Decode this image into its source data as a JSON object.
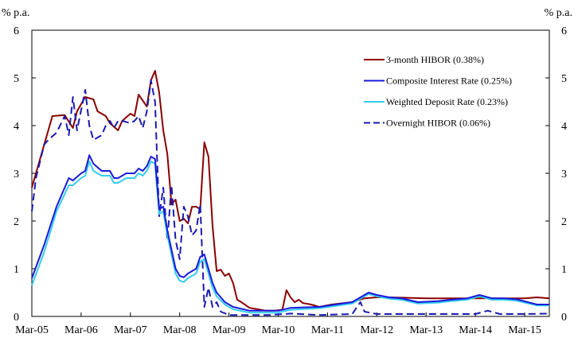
{
  "chart_data": {
    "type": "line",
    "title": "",
    "xlabel": "",
    "ylabel_left": "% p.a.",
    "ylabel_right": "% p.a.",
    "ylim": [
      0,
      6
    ],
    "yticks": [
      0,
      1,
      2,
      3,
      4,
      5,
      6
    ],
    "xlim": [
      "2005-03",
      "2015-09"
    ],
    "xticks": [
      "Mar-05",
      "Mar-06",
      "Mar-07",
      "Mar-08",
      "Mar-09",
      "Mar-10",
      "Mar-11",
      "Mar-12",
      "Mar-13",
      "Mar-14",
      "Mar-15"
    ],
    "grid": false,
    "legend_position": "top-right",
    "series": [
      {
        "name": "3-month HIBOR (0.38%)",
        "color": "#8b0000",
        "style": "solid",
        "points": [
          [
            "2005-03",
            2.7
          ],
          [
            "2005-04",
            3.0
          ],
          [
            "2005-06",
            3.6
          ],
          [
            "2005-08",
            4.2
          ],
          [
            "2005-11",
            4.22
          ],
          [
            "2006-01",
            3.95
          ],
          [
            "2006-02",
            4.3
          ],
          [
            "2006-04",
            4.6
          ],
          [
            "2006-06",
            4.55
          ],
          [
            "2006-07",
            4.3
          ],
          [
            "2006-09",
            4.2
          ],
          [
            "2006-10",
            4.05
          ],
          [
            "2006-12",
            3.9
          ],
          [
            "2007-01",
            4.1
          ],
          [
            "2007-03",
            4.25
          ],
          [
            "2007-04",
            4.2
          ],
          [
            "2007-05",
            4.65
          ],
          [
            "2007-07",
            4.4
          ],
          [
            "2007-08",
            4.95
          ],
          [
            "2007-09",
            5.15
          ],
          [
            "2007-10",
            4.7
          ],
          [
            "2007-11",
            3.9
          ],
          [
            "2007-12",
            3.4
          ],
          [
            "2008-01",
            2.35
          ],
          [
            "2008-02",
            2.45
          ],
          [
            "2008-03",
            2.0
          ],
          [
            "2008-04",
            2.05
          ],
          [
            "2008-05",
            1.95
          ],
          [
            "2008-06",
            2.3
          ],
          [
            "2008-07",
            2.3
          ],
          [
            "2008-08",
            2.25
          ],
          [
            "2008-09",
            3.65
          ],
          [
            "2008-10",
            3.35
          ],
          [
            "2008-11",
            1.9
          ],
          [
            "2008-12",
            0.95
          ],
          [
            "2009-01",
            0.98
          ],
          [
            "2009-02",
            0.85
          ],
          [
            "2009-03",
            0.9
          ],
          [
            "2009-04",
            0.7
          ],
          [
            "2009-05",
            0.35
          ],
          [
            "2009-06",
            0.3
          ],
          [
            "2009-08",
            0.18
          ],
          [
            "2009-10",
            0.15
          ],
          [
            "2009-12",
            0.12
          ],
          [
            "2010-02",
            0.12
          ],
          [
            "2010-04",
            0.14
          ],
          [
            "2010-05",
            0.55
          ],
          [
            "2010-06",
            0.4
          ],
          [
            "2010-07",
            0.3
          ],
          [
            "2010-08",
            0.35
          ],
          [
            "2010-09",
            0.28
          ],
          [
            "2010-11",
            0.25
          ],
          [
            "2011-01",
            0.2
          ],
          [
            "2011-04",
            0.25
          ],
          [
            "2011-06",
            0.27
          ],
          [
            "2011-09",
            0.3
          ],
          [
            "2011-12",
            0.38
          ],
          [
            "2012-03",
            0.4
          ],
          [
            "2012-06",
            0.4
          ],
          [
            "2013-03",
            0.38
          ],
          [
            "2014-03",
            0.38
          ],
          [
            "2015-03",
            0.38
          ],
          [
            "2015-06",
            0.4
          ],
          [
            "2015-09",
            0.38
          ]
        ]
      },
      {
        "name": "Composite Interest Rate (0.25%)",
        "color": "#1a1adb",
        "style": "solid",
        "points": [
          [
            "2005-03",
            0.8
          ],
          [
            "2005-06",
            1.5
          ],
          [
            "2005-09",
            2.3
          ],
          [
            "2005-12",
            2.9
          ],
          [
            "2006-01",
            2.85
          ],
          [
            "2006-03",
            3.0
          ],
          [
            "2006-04",
            3.05
          ],
          [
            "2006-05",
            3.38
          ],
          [
            "2006-06",
            3.2
          ],
          [
            "2006-08",
            3.05
          ],
          [
            "2006-10",
            3.05
          ],
          [
            "2006-11",
            2.9
          ],
          [
            "2006-12",
            2.9
          ],
          [
            "2007-02",
            3.0
          ],
          [
            "2007-04",
            3.0
          ],
          [
            "2007-05",
            3.1
          ],
          [
            "2007-06",
            3.05
          ],
          [
            "2007-07",
            3.15
          ],
          [
            "2007-08",
            3.35
          ],
          [
            "2007-09",
            3.3
          ],
          [
            "2007-10",
            2.25
          ],
          [
            "2007-11",
            2.3
          ],
          [
            "2007-12",
            1.8
          ],
          [
            "2008-01",
            1.4
          ],
          [
            "2008-02",
            1.0
          ],
          [
            "2008-03",
            0.85
          ],
          [
            "2008-04",
            0.82
          ],
          [
            "2008-05",
            0.9
          ],
          [
            "2008-06",
            0.95
          ],
          [
            "2008-07",
            1.0
          ],
          [
            "2008-08",
            1.25
          ],
          [
            "2008-09",
            1.3
          ],
          [
            "2008-10",
            1.0
          ],
          [
            "2008-11",
            0.7
          ],
          [
            "2008-12",
            0.5
          ],
          [
            "2009-02",
            0.3
          ],
          [
            "2009-04",
            0.2
          ],
          [
            "2009-08",
            0.12
          ],
          [
            "2010-03",
            0.12
          ],
          [
            "2010-06",
            0.18
          ],
          [
            "2011-01",
            0.2
          ],
          [
            "2011-09",
            0.3
          ],
          [
            "2011-12",
            0.45
          ],
          [
            "2012-01",
            0.5
          ],
          [
            "2012-03",
            0.45
          ],
          [
            "2012-06",
            0.4
          ],
          [
            "2012-09",
            0.38
          ],
          [
            "2013-01",
            0.3
          ],
          [
            "2013-06",
            0.32
          ],
          [
            "2013-09",
            0.35
          ],
          [
            "2014-01",
            0.38
          ],
          [
            "2014-04",
            0.45
          ],
          [
            "2014-07",
            0.38
          ],
          [
            "2014-10",
            0.38
          ],
          [
            "2015-01",
            0.36
          ],
          [
            "2015-06",
            0.25
          ],
          [
            "2015-09",
            0.25
          ]
        ]
      },
      {
        "name": "Weighted Deposit Rate (0.23%)",
        "color": "#33ccee",
        "style": "solid",
        "points": [
          [
            "2005-03",
            0.65
          ],
          [
            "2005-06",
            1.35
          ],
          [
            "2005-09",
            2.2
          ],
          [
            "2005-12",
            2.75
          ],
          [
            "2006-01",
            2.75
          ],
          [
            "2006-03",
            2.9
          ],
          [
            "2006-04",
            2.95
          ],
          [
            "2006-05",
            3.25
          ],
          [
            "2006-06",
            3.05
          ],
          [
            "2006-08",
            2.95
          ],
          [
            "2006-10",
            2.95
          ],
          [
            "2006-11",
            2.8
          ],
          [
            "2006-12",
            2.8
          ],
          [
            "2007-02",
            2.9
          ],
          [
            "2007-04",
            2.9
          ],
          [
            "2007-05",
            3.0
          ],
          [
            "2007-06",
            2.95
          ],
          [
            "2007-07",
            3.05
          ],
          [
            "2007-08",
            3.25
          ],
          [
            "2007-09",
            3.2
          ],
          [
            "2007-10",
            2.15
          ],
          [
            "2007-11",
            2.2
          ],
          [
            "2007-12",
            1.7
          ],
          [
            "2008-01",
            1.3
          ],
          [
            "2008-02",
            0.9
          ],
          [
            "2008-03",
            0.75
          ],
          [
            "2008-04",
            0.72
          ],
          [
            "2008-05",
            0.8
          ],
          [
            "2008-06",
            0.85
          ],
          [
            "2008-07",
            0.9
          ],
          [
            "2008-08",
            1.15
          ],
          [
            "2008-09",
            1.2
          ],
          [
            "2008-10",
            0.9
          ],
          [
            "2008-11",
            0.6
          ],
          [
            "2008-12",
            0.42
          ],
          [
            "2009-02",
            0.25
          ],
          [
            "2009-04",
            0.15
          ],
          [
            "2009-08",
            0.08
          ],
          [
            "2010-03",
            0.08
          ],
          [
            "2010-06",
            0.14
          ],
          [
            "2011-01",
            0.17
          ],
          [
            "2011-09",
            0.27
          ],
          [
            "2011-12",
            0.42
          ],
          [
            "2012-01",
            0.47
          ],
          [
            "2012-03",
            0.42
          ],
          [
            "2012-06",
            0.37
          ],
          [
            "2012-09",
            0.35
          ],
          [
            "2013-01",
            0.27
          ],
          [
            "2013-06",
            0.29
          ],
          [
            "2013-09",
            0.32
          ],
          [
            "2014-01",
            0.35
          ],
          [
            "2014-04",
            0.42
          ],
          [
            "2014-07",
            0.35
          ],
          [
            "2014-10",
            0.35
          ],
          [
            "2015-01",
            0.33
          ],
          [
            "2015-06",
            0.23
          ],
          [
            "2015-09",
            0.23
          ]
        ]
      },
      {
        "name": "Overnight HIBOR (0.06%)",
        "color": "#1a1ab0",
        "style": "dashed",
        "points": [
          [
            "2005-03",
            2.2
          ],
          [
            "2005-04",
            2.9
          ],
          [
            "2005-06",
            3.6
          ],
          [
            "2005-07",
            3.7
          ],
          [
            "2005-09",
            3.85
          ],
          [
            "2005-11",
            4.2
          ],
          [
            "2005-12",
            3.8
          ],
          [
            "2006-01",
            4.6
          ],
          [
            "2006-02",
            3.9
          ],
          [
            "2006-04",
            4.75
          ],
          [
            "2006-05",
            4.0
          ],
          [
            "2006-06",
            3.7
          ],
          [
            "2006-07",
            3.75
          ],
          [
            "2006-08",
            3.8
          ],
          [
            "2006-09",
            4.0
          ],
          [
            "2006-10",
            4.1
          ],
          [
            "2006-11",
            3.95
          ],
          [
            "2006-12",
            4.1
          ],
          [
            "2007-01",
            4.1
          ],
          [
            "2007-03",
            4.05
          ],
          [
            "2007-04",
            4.1
          ],
          [
            "2007-05",
            4.2
          ],
          [
            "2007-06",
            3.95
          ],
          [
            "2007-07",
            4.3
          ],
          [
            "2007-08",
            4.95
          ],
          [
            "2007-09",
            4.5
          ],
          [
            "2007-10",
            2.1
          ],
          [
            "2007-11",
            2.7
          ],
          [
            "2007-12",
            1.6
          ],
          [
            "2008-01",
            2.75
          ],
          [
            "2008-02",
            1.6
          ],
          [
            "2008-03",
            1.2
          ],
          [
            "2008-04",
            2.3
          ],
          [
            "2008-05",
            2.1
          ],
          [
            "2008-06",
            1.7
          ],
          [
            "2008-07",
            1.8
          ],
          [
            "2008-08",
            2.35
          ],
          [
            "2008-09",
            0.2
          ],
          [
            "2008-10",
            0.6
          ],
          [
            "2008-11",
            0.2
          ],
          [
            "2008-12",
            0.3
          ],
          [
            "2009-01",
            0.1
          ],
          [
            "2009-03",
            0.03
          ],
          [
            "2009-06",
            0.03
          ],
          [
            "2010-01",
            0.03
          ],
          [
            "2010-06",
            0.06
          ],
          [
            "2011-01",
            0.03
          ],
          [
            "2011-09",
            0.05
          ],
          [
            "2011-11",
            0.3
          ],
          [
            "2011-12",
            0.1
          ],
          [
            "2012-03",
            0.05
          ],
          [
            "2012-09",
            0.05
          ],
          [
            "2013-03",
            0.05
          ],
          [
            "2014-03",
            0.05
          ],
          [
            "2014-06",
            0.12
          ],
          [
            "2014-09",
            0.05
          ],
          [
            "2015-03",
            0.05
          ],
          [
            "2015-09",
            0.06
          ]
        ]
      }
    ]
  }
}
